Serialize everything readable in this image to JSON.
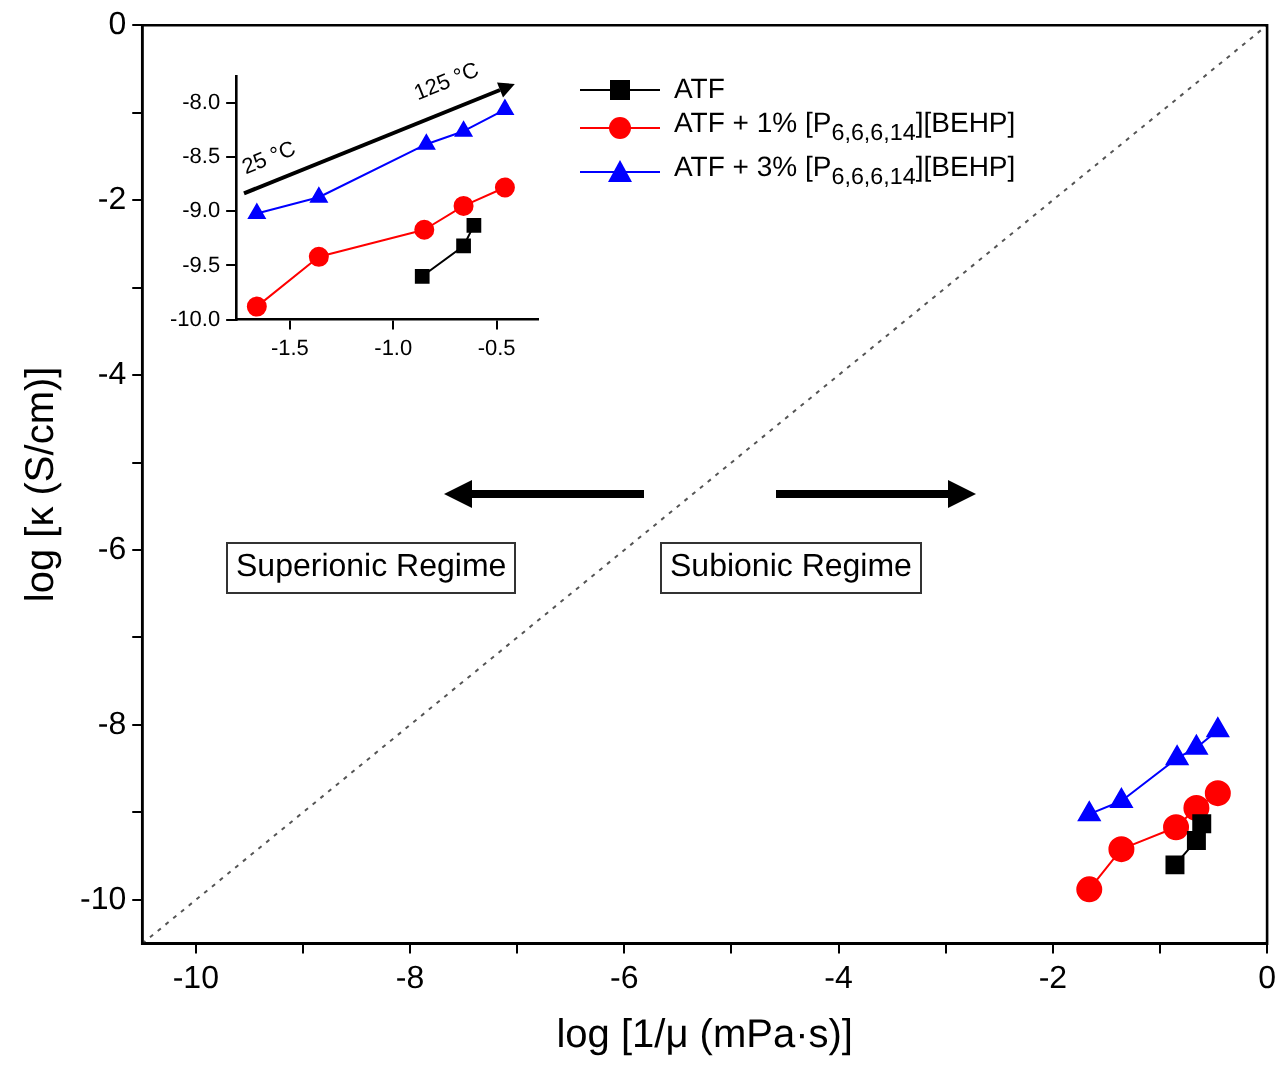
{
  "chart_data": [
    {
      "type": "line",
      "xlabel": "log [1/μ (mPa·s)]",
      "ylabel": "log [κ (S/cm)]",
      "xlim": [
        -10.5,
        0
      ],
      "xticks": [
        -10,
        {
          "value": -9,
          "label": null
        },
        -8,
        {
          "value": -7,
          "label": null
        },
        -6,
        {
          "value": -5,
          "label": null
        },
        -4,
        {
          "value": -3,
          "label": null
        },
        -2,
        {
          "value": -1,
          "label": null
        },
        0
      ],
      "ylim": [
        -10.5,
        0
      ],
      "yticks": [
        -10,
        {
          "value": -9,
          "label": null
        },
        -8,
        {
          "value": -7,
          "label": null
        },
        -6,
        {
          "value": -5,
          "label": null
        },
        -4,
        {
          "value": -3,
          "label": null
        },
        -2,
        {
          "value": -1,
          "label": null
        },
        0
      ],
      "legend": "top",
      "annotations": [
        "Superionic Regime",
        "Subionic Regime"
      ],
      "series": [
        {
          "name": "ATF",
          "color": "#000000",
          "marker": "square",
          "x": [
            -0.86,
            -0.66,
            -0.61
          ],
          "values": [
            -9.6,
            -9.32,
            -9.13
          ]
        },
        {
          "name": "ATF + 1% [P$_{6,6,6,14}$][BEHP]",
          "color": "#ff0000",
          "marker": "circle",
          "x": [
            -1.66,
            -1.36,
            -0.85,
            -0.66,
            -0.46
          ],
          "values": [
            -9.88,
            -9.42,
            -9.17,
            -8.95,
            -8.78
          ]
        },
        {
          "name": "ATF + 3% [P$_{6,6,6,14}$][BEHP]",
          "color": "#0000ff",
          "marker": "triangle",
          "x": [
            -1.66,
            -1.36,
            -0.84,
            -0.66,
            -0.46
          ],
          "values": [
            -9.02,
            -8.87,
            -8.38,
            -8.26,
            -8.06
          ]
        },
        {
          "color": "#555555",
          "marker": "none",
          "line_style": "dotted",
          "x": [
            -10.5,
            0
          ],
          "values": [
            -10.5,
            0
          ]
        }
      ]
    },
    {
      "type": "line",
      "xlim": [
        -1.76,
        -0.3
      ],
      "xticks": [
        {
          "value": -1.5,
          "label": "-1.5"
        },
        {
          "value": -1,
          "label": "-1.0"
        },
        {
          "value": -0.5,
          "label": "-0.5"
        }
      ],
      "ylim": [
        -10,
        -7.75
      ],
      "yticks": [
        {
          "value": -10,
          "label": "-10.0"
        },
        {
          "value": -9.5,
          "label": "-9.5"
        },
        {
          "value": -9,
          "label": "-9.0"
        },
        {
          "value": -8.5,
          "label": "-8.5"
        },
        {
          "value": -8,
          "label": "-8.0"
        }
      ],
      "annotations": [
        "25 °C",
        "125 °C"
      ],
      "series": [
        {
          "color": "#000000",
          "marker": "square",
          "x": [
            -0.86,
            -0.66,
            -0.61
          ],
          "values": [
            -9.6,
            -9.32,
            -9.13
          ]
        },
        {
          "color": "#ff0000",
          "marker": "circle",
          "x": [
            -1.66,
            -1.36,
            -0.85,
            -0.66,
            -0.46
          ],
          "values": [
            -9.88,
            -9.42,
            -9.17,
            -8.95,
            -8.78
          ]
        },
        {
          "color": "#0000ff",
          "marker": "triangle",
          "x": [
            -1.66,
            -1.36,
            -0.84,
            -0.66,
            -0.46
          ],
          "values": [
            -9.02,
            -8.87,
            -8.38,
            -8.26,
            -8.06
          ]
        }
      ]
    }
  ]
}
